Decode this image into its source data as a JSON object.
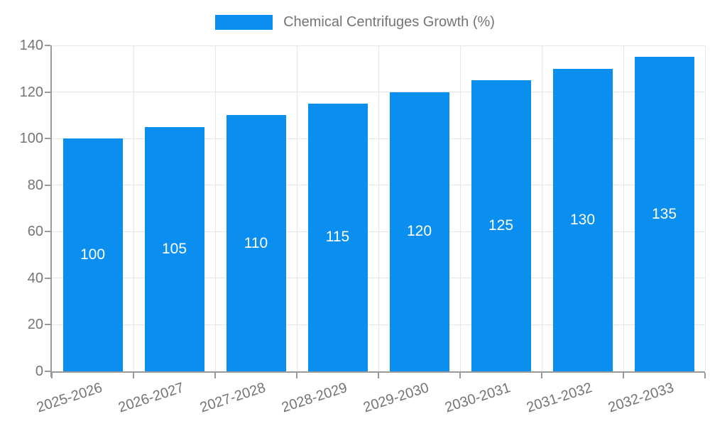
{
  "chart_data": {
    "type": "bar",
    "title": "",
    "legend_label": "Chemical Centrifuges Growth (%)",
    "legend_position": "top-center",
    "categories": [
      "2025-2026",
      "2026-2027",
      "2027-2028",
      "2028-2029",
      "2029-2030",
      "2030-2031",
      "2031-2032",
      "2032-2033"
    ],
    "values": [
      100,
      105,
      110,
      115,
      120,
      125,
      130,
      135
    ],
    "xlabel": "",
    "ylabel": "",
    "ylim": [
      0,
      140
    ],
    "yticks": [
      0,
      20,
      40,
      60,
      80,
      100,
      120,
      140
    ],
    "grid": true,
    "x_tick_rotation_deg": -18,
    "value_label_position": "inside-center"
  },
  "colors": {
    "bar": "#0a8ff0",
    "grid": "#e6e6e6",
    "axis": "#9a9a9a",
    "tick_text": "#757575",
    "value_label": "#ffffff",
    "background": "#ffffff"
  }
}
